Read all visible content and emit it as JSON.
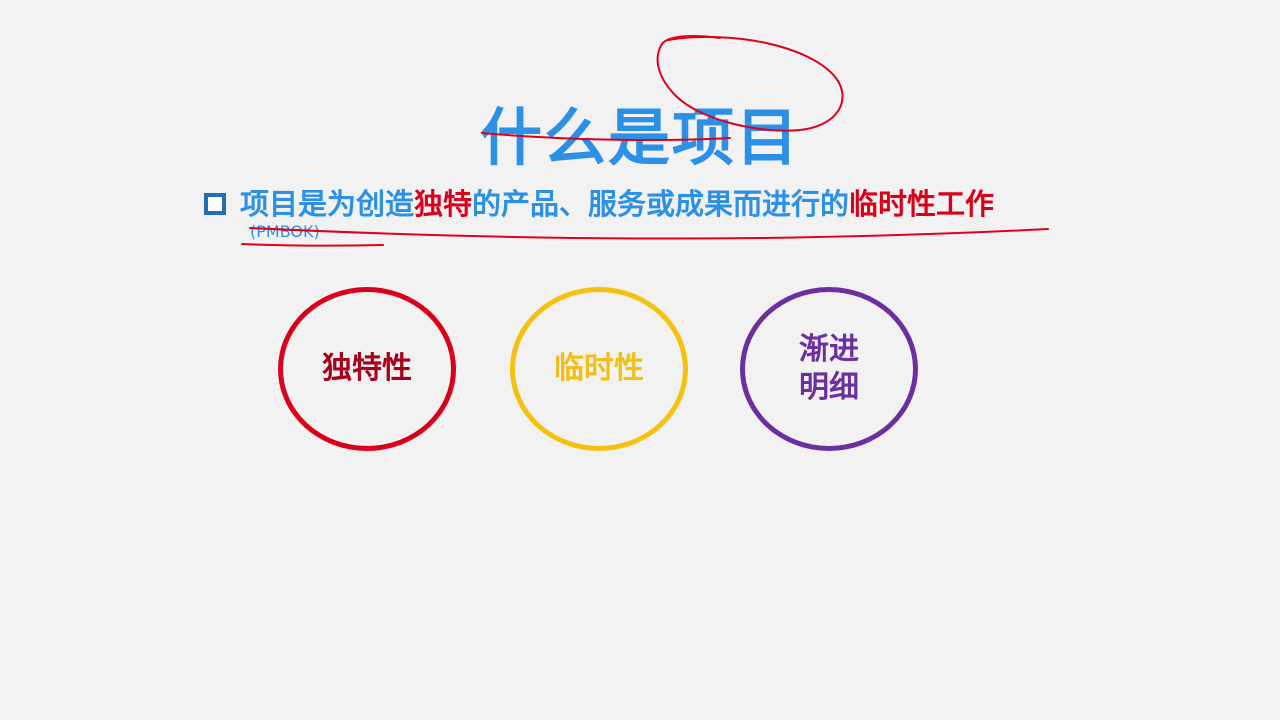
{
  "slide": {
    "title": "什么是项目",
    "definition": {
      "part1": "项目是为创造",
      "highlight1": "独特",
      "part2": "的产品、服务或成果而进行的",
      "highlight2": "临时性工作"
    },
    "source": "(PMBOK)"
  },
  "characteristics": [
    {
      "label": "独特性",
      "color": "#d9001b"
    },
    {
      "label": "临时性",
      "color": "#f5c10f"
    },
    {
      "line1": "渐进",
      "line2": "明细",
      "color": "#6b2fa0"
    }
  ],
  "colors": {
    "accent_blue": "#2b90e6",
    "emphasis_red": "#d8001a",
    "annotation_red": "#e0001b",
    "background": "#f2f2f2"
  }
}
